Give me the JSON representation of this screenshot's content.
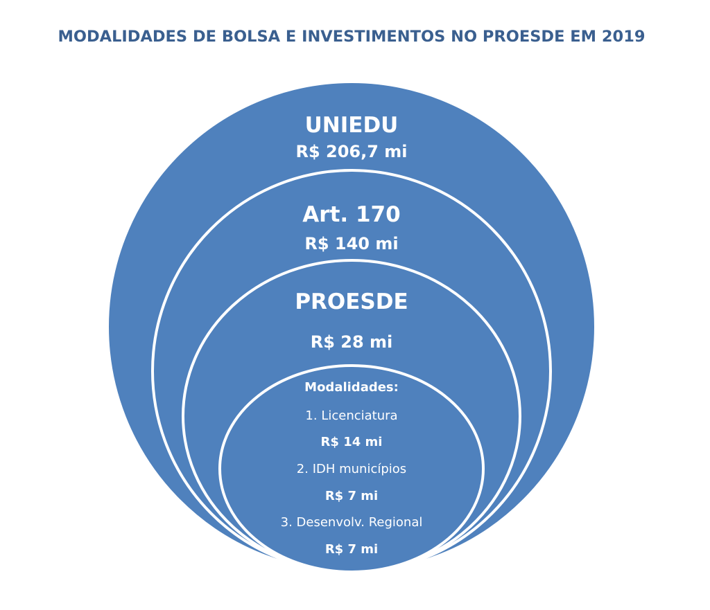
{
  "title": "MODALIDADES DE BOLSA E INVESTIMENTOS NO PROESDE EM 2019",
  "colors": {
    "circle_fill": "#4f81bd",
    "circle_stroke": "#ffffff",
    "title": "#3a5f8f",
    "text": "#ffffff"
  },
  "levels": [
    {
      "name": "UNIEDU",
      "value": "R$ 206,7 mi"
    },
    {
      "name": "Art. 170",
      "value": "R$ 140 mi"
    },
    {
      "name": "PROESDE",
      "value": "R$ 28 mi"
    }
  ],
  "modalidades": {
    "heading": "Modalidades:",
    "items": [
      {
        "label": "1. Licenciatura",
        "value": "R$ 14 mi"
      },
      {
        "label": "2. IDH municípios",
        "value": "R$ 7 mi"
      },
      {
        "label": "3. Desenvolv. Regional",
        "value": "R$ 7 mi"
      }
    ]
  }
}
